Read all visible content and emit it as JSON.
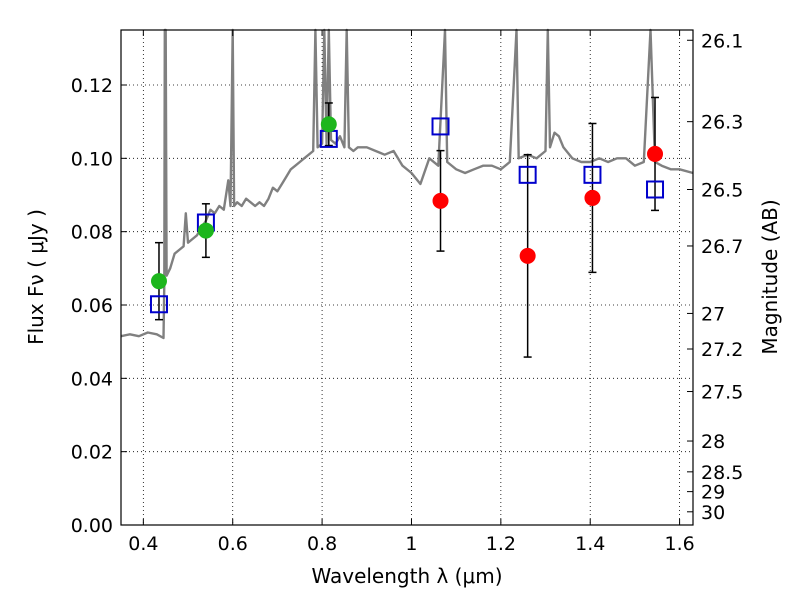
{
  "chart_data": {
    "type": "scatter",
    "xlabel": "Wavelength  λ (μm)",
    "ylabel": "Flux  Fν  ( μJy )",
    "ylabel_right": "Magnitude (AB)",
    "xlim": [
      0.35,
      1.63
    ],
    "ylim": [
      0.0,
      0.135
    ],
    "grid": true,
    "x_ticks": [
      0.4,
      0.6,
      0.8,
      1.0,
      1.2,
      1.4,
      1.6
    ],
    "x_tick_labels": [
      "0.4",
      "0.6",
      "0.8",
      "1",
      "1.2",
      "1.4",
      "1.6"
    ],
    "y_ticks": [
      0.0,
      0.02,
      0.04,
      0.06,
      0.08,
      0.1,
      0.12
    ],
    "y_tick_labels": [
      "0.00",
      "0.02",
      "0.04",
      "0.06",
      "0.08",
      "0.10",
      "0.12"
    ],
    "right_ticks": [
      {
        "label": "26.1",
        "flux": 0.1322
      },
      {
        "label": "26.3",
        "flux": 0.11
      },
      {
        "label": "26.5",
        "flux": 0.0915
      },
      {
        "label": "26.7",
        "flux": 0.0761
      },
      {
        "label": "27",
        "flux": 0.0577
      },
      {
        "label": "27.2",
        "flux": 0.048
      },
      {
        "label": "27.5",
        "flux": 0.0364
      },
      {
        "label": "28",
        "flux": 0.0229
      },
      {
        "label": "28.5",
        "flux": 0.0145
      },
      {
        "label": "29",
        "flux": 0.0091
      },
      {
        "label": "30",
        "flux": 0.0036
      }
    ],
    "spectrum": {
      "color": "#808080",
      "points": [
        [
          0.35,
          0.0515
        ],
        [
          0.37,
          0.052
        ],
        [
          0.39,
          0.0515
        ],
        [
          0.41,
          0.0525
        ],
        [
          0.43,
          0.052
        ],
        [
          0.445,
          0.051
        ],
        [
          0.447,
          0.066
        ],
        [
          0.448,
          0.135
        ],
        [
          0.45,
          0.135
        ],
        [
          0.452,
          0.068
        ],
        [
          0.46,
          0.07
        ],
        [
          0.47,
          0.074
        ],
        [
          0.48,
          0.075
        ],
        [
          0.49,
          0.076
        ],
        [
          0.495,
          0.085
        ],
        [
          0.5,
          0.077
        ],
        [
          0.51,
          0.078
        ],
        [
          0.52,
          0.079
        ],
        [
          0.53,
          0.081
        ],
        [
          0.54,
          0.083
        ],
        [
          0.55,
          0.086
        ],
        [
          0.56,
          0.085
        ],
        [
          0.57,
          0.087
        ],
        [
          0.58,
          0.086
        ],
        [
          0.59,
          0.094
        ],
        [
          0.595,
          0.087
        ],
        [
          0.6,
          0.135
        ],
        [
          0.603,
          0.087
        ],
        [
          0.61,
          0.088
        ],
        [
          0.62,
          0.087
        ],
        [
          0.63,
          0.089
        ],
        [
          0.64,
          0.088
        ],
        [
          0.65,
          0.087
        ],
        [
          0.66,
          0.088
        ],
        [
          0.67,
          0.087
        ],
        [
          0.68,
          0.089
        ],
        [
          0.69,
          0.092
        ],
        [
          0.7,
          0.091
        ],
        [
          0.71,
          0.093
        ],
        [
          0.72,
          0.095
        ],
        [
          0.73,
          0.097
        ],
        [
          0.74,
          0.098
        ],
        [
          0.75,
          0.099
        ],
        [
          0.76,
          0.1
        ],
        [
          0.77,
          0.101
        ],
        [
          0.78,
          0.102
        ],
        [
          0.785,
          0.135
        ],
        [
          0.79,
          0.103
        ],
        [
          0.8,
          0.104
        ],
        [
          0.805,
          0.135
        ],
        [
          0.81,
          0.104
        ],
        [
          0.815,
          0.135
        ],
        [
          0.82,
          0.105
        ],
        [
          0.83,
          0.104
        ],
        [
          0.84,
          0.106
        ],
        [
          0.85,
          0.103
        ],
        [
          0.855,
          0.135
        ],
        [
          0.86,
          0.103
        ],
        [
          0.87,
          0.102
        ],
        [
          0.88,
          0.103
        ],
        [
          0.9,
          0.103
        ],
        [
          0.92,
          0.102
        ],
        [
          0.94,
          0.101
        ],
        [
          0.96,
          0.102
        ],
        [
          0.98,
          0.098
        ],
        [
          1.0,
          0.096
        ],
        [
          1.02,
          0.093
        ],
        [
          1.04,
          0.1
        ],
        [
          1.06,
          0.098
        ],
        [
          1.075,
          0.135
        ],
        [
          1.08,
          0.099
        ],
        [
          1.1,
          0.097
        ],
        [
          1.12,
          0.096
        ],
        [
          1.14,
          0.097
        ],
        [
          1.16,
          0.098
        ],
        [
          1.18,
          0.098
        ],
        [
          1.2,
          0.097
        ],
        [
          1.22,
          0.099
        ],
        [
          1.235,
          0.135
        ],
        [
          1.24,
          0.1
        ],
        [
          1.26,
          0.101
        ],
        [
          1.28,
          0.1
        ],
        [
          1.3,
          0.102
        ],
        [
          1.305,
          0.135
        ],
        [
          1.31,
          0.103
        ],
        [
          1.32,
          0.107
        ],
        [
          1.33,
          0.106
        ],
        [
          1.34,
          0.103
        ],
        [
          1.36,
          0.1
        ],
        [
          1.38,
          0.099
        ],
        [
          1.4,
          0.099
        ],
        [
          1.42,
          0.1
        ],
        [
          1.44,
          0.099
        ],
        [
          1.46,
          0.1
        ],
        [
          1.48,
          0.1
        ],
        [
          1.5,
          0.098
        ],
        [
          1.52,
          0.099
        ],
        [
          1.535,
          0.135
        ],
        [
          1.545,
          0.099
        ],
        [
          1.56,
          0.098
        ],
        [
          1.58,
          0.097
        ],
        [
          1.6,
          0.097
        ],
        [
          1.63,
          0.096
        ]
      ]
    },
    "green_points": {
      "color": "#1db61d",
      "points": [
        {
          "x": 0.435,
          "y": 0.0665,
          "err": 0.0105
        },
        {
          "x": 0.54,
          "y": 0.0803,
          "err": 0.0073
        },
        {
          "x": 0.815,
          "y": 0.1093,
          "err": 0.0058
        }
      ]
    },
    "red_points": {
      "color": "#ff0000",
      "points": [
        {
          "x": 1.065,
          "y": 0.0884,
          "err": 0.0137
        },
        {
          "x": 1.26,
          "y": 0.0734,
          "err": 0.0276
        },
        {
          "x": 1.405,
          "y": 0.0892,
          "err": 0.0203
        },
        {
          "x": 1.545,
          "y": 0.1012,
          "err": 0.0154
        }
      ]
    },
    "model_squares": {
      "color": "#0000cc",
      "points": [
        {
          "x": 0.435,
          "y": 0.0602
        },
        {
          "x": 0.54,
          "y": 0.0825
        },
        {
          "x": 0.815,
          "y": 0.1053
        },
        {
          "x": 1.065,
          "y": 0.1087
        },
        {
          "x": 1.26,
          "y": 0.0955
        },
        {
          "x": 1.405,
          "y": 0.0955
        },
        {
          "x": 1.545,
          "y": 0.0915
        }
      ]
    }
  }
}
